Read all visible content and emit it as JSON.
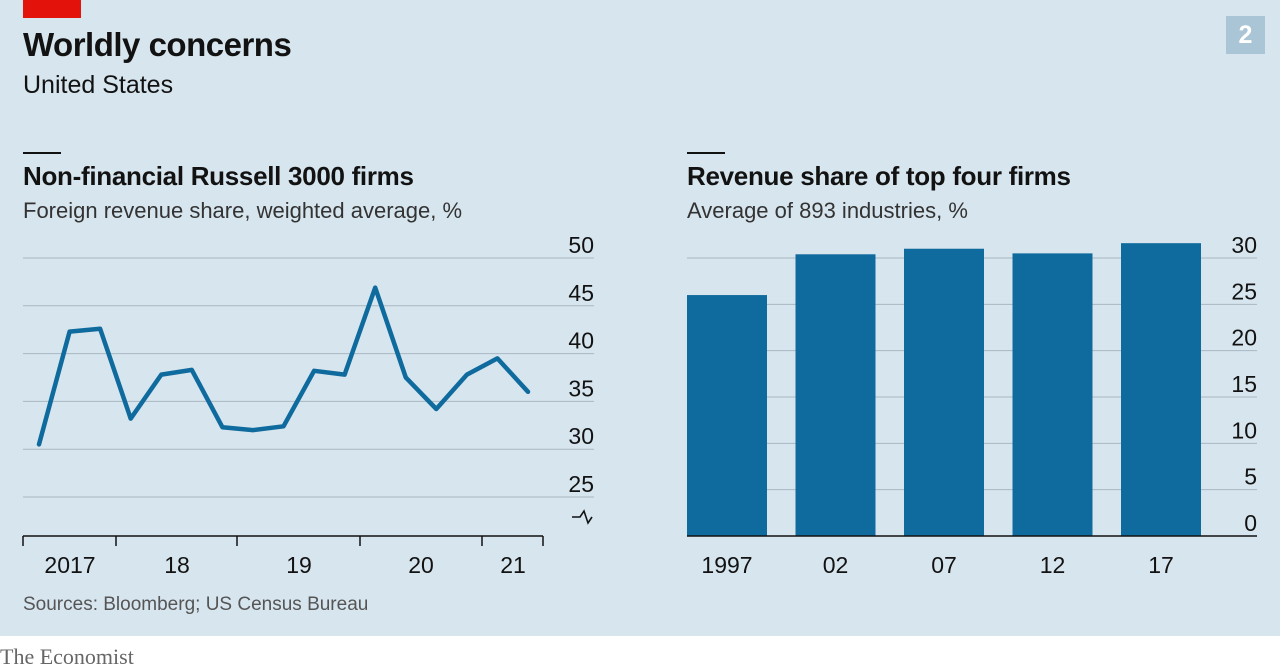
{
  "header": {
    "title": "Worldly concerns",
    "subtitle": "United States",
    "chart_number": "2"
  },
  "left_panel": {
    "title": "Non-financial Russell 3000 firms",
    "subtitle": "Foreign revenue share, weighted average, %"
  },
  "right_panel": {
    "title": "Revenue share of top four firms",
    "subtitle": "Average of 893 industries, %"
  },
  "footer": {
    "source": "Sources: Bloomberg; US Census Bureau",
    "brand": "The Economist"
  },
  "colors": {
    "series": "#0f6b9e",
    "background": "#d7e5ee",
    "grid": "#a9b7c2",
    "brand_red": "#e3120b"
  },
  "chart_data": [
    {
      "type": "line",
      "title": "Non-financial Russell 3000 firms",
      "subtitle": "Foreign revenue share, weighted average, %",
      "x_ticks": [
        "2017",
        "18",
        "19",
        "20",
        "21"
      ],
      "y_ticks": [
        "50",
        "45",
        "40",
        "35",
        "30",
        "25"
      ],
      "ylim": [
        25,
        50
      ],
      "y_axis_broken": true,
      "grid": true,
      "series": [
        {
          "values": [
            30.5,
            42.3,
            42.6,
            33.2,
            37.8,
            38.3,
            32.3,
            32.0,
            32.4,
            38.2,
            37.8,
            46.9,
            37.5,
            34.2,
            37.8,
            39.5,
            36.0
          ]
        }
      ]
    },
    {
      "type": "bar",
      "title": "Revenue share of top four firms",
      "subtitle": "Average of 893 industries, %",
      "categories": [
        "1997",
        "02",
        "07",
        "12",
        "17"
      ],
      "values": [
        26.0,
        30.4,
        31.0,
        30.5,
        31.6
      ],
      "y_ticks": [
        "30",
        "25",
        "20",
        "15",
        "10",
        "5",
        "0"
      ],
      "ylim": [
        0,
        30
      ],
      "grid": true
    }
  ]
}
